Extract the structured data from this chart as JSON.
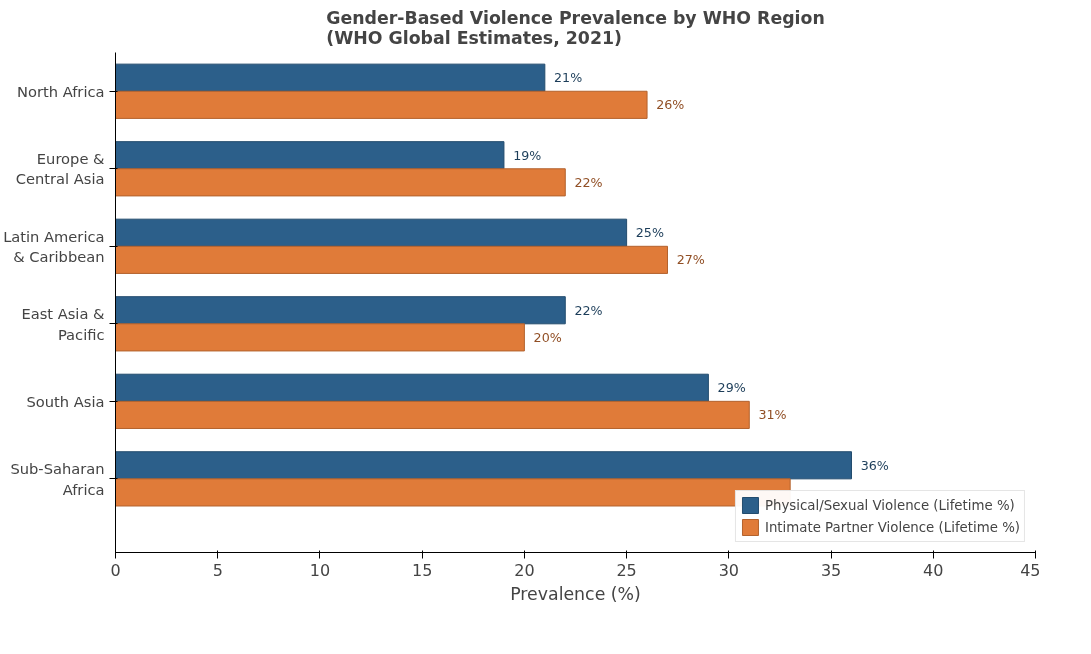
{
  "chart_data": {
    "type": "bar",
    "orientation": "horizontal",
    "title": "Gender-Based Violence Prevalence by WHO Region\n(WHO Global Estimates, 2021)",
    "xlabel": "Prevalence (%)",
    "categories": [
      "North Africa",
      "Europe & Central Asia",
      "Latin America & Caribbean",
      "East Asia & Pacific",
      "South Asia",
      "Sub-Saharan Africa"
    ],
    "series": [
      {
        "name": "Physical/Sexual Violence (Lifetime %)",
        "color": "#2c5f8a",
        "values": [
          21,
          19,
          25,
          22,
          29,
          36
        ],
        "value_labels": [
          "21%",
          "19%",
          "25%",
          "22%",
          "29%",
          "36%"
        ]
      },
      {
        "name": "Intimate Partner Violence (Lifetime %)",
        "color": "#e07b39",
        "values": [
          26,
          22,
          27,
          20,
          31,
          33
        ],
        "value_labels": [
          "26%",
          "22%",
          "27%",
          "20%",
          "31%",
          null
        ]
      }
    ],
    "xlim": [
      0,
      45
    ],
    "xticks": [
      0,
      5,
      10,
      15,
      20,
      25,
      30,
      35,
      40,
      45
    ],
    "grid": false,
    "legend": "bottom right"
  }
}
